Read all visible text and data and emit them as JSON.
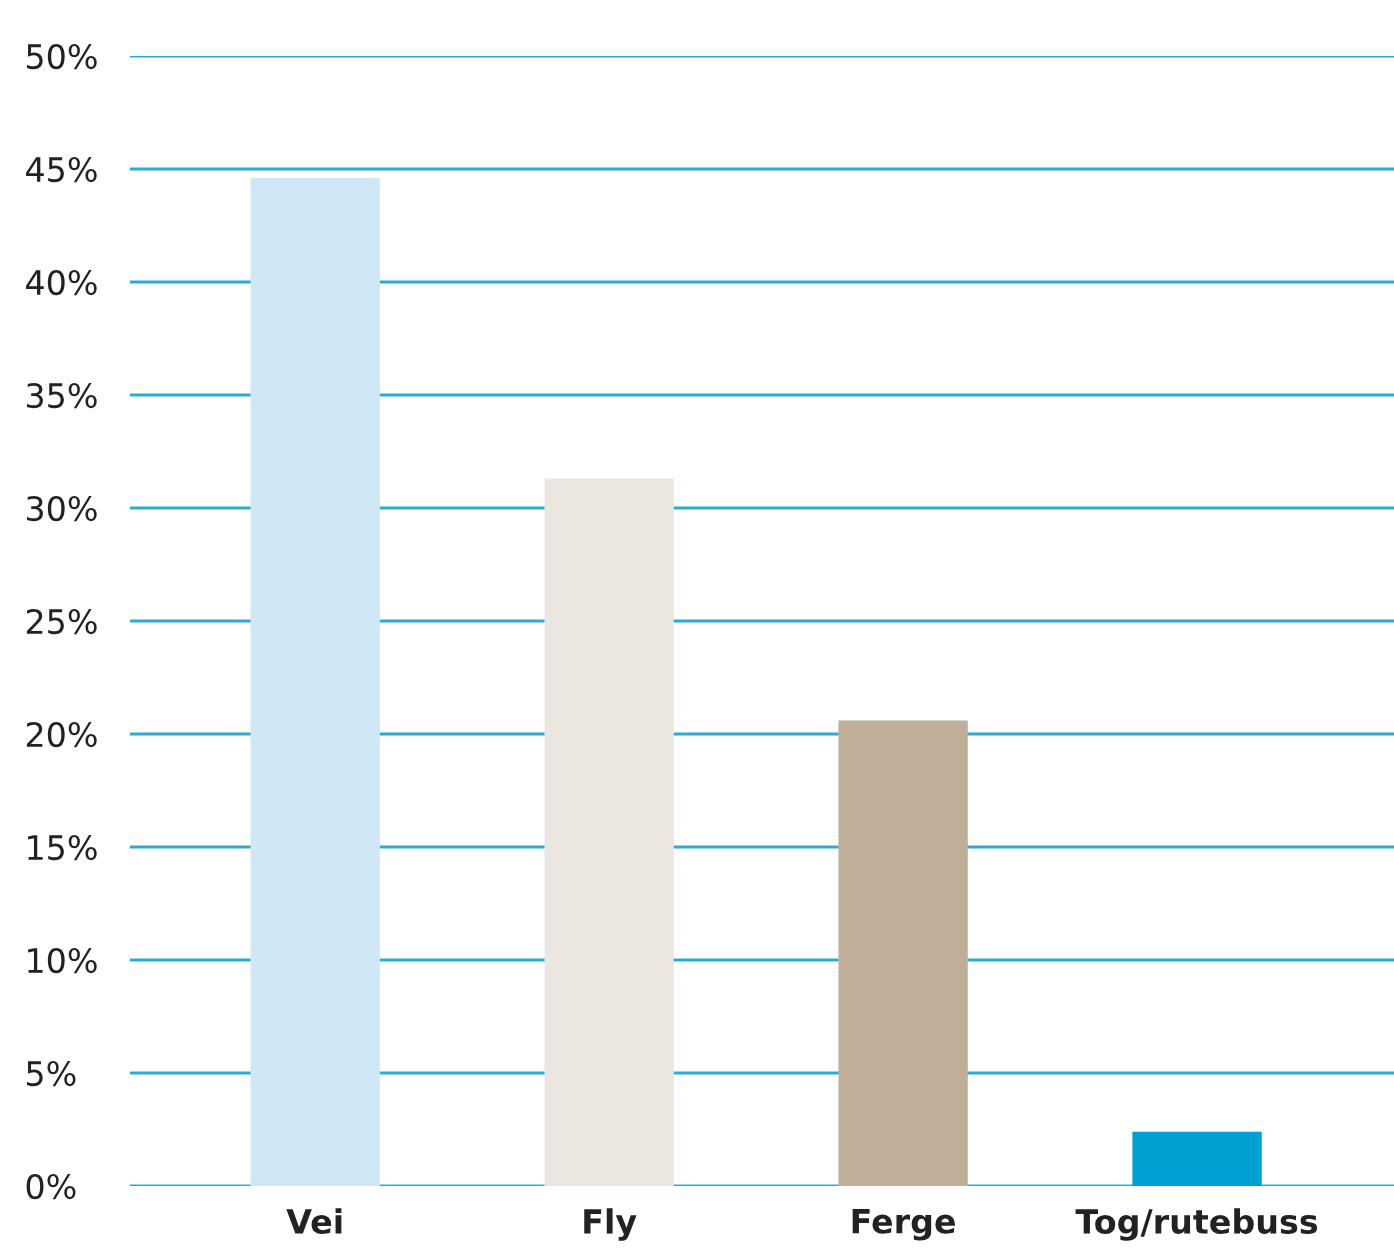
{
  "chart_data": {
    "type": "bar",
    "categories": [
      "Vei",
      "Fly",
      "Ferge",
      "Tog/rutebuss"
    ],
    "values": [
      44.6,
      31.3,
      20.6,
      2.4
    ],
    "colors": [
      "#d0e8f5",
      "#ebe7e0",
      "#bfae98",
      "#00a0d2"
    ],
    "ylim": [
      0,
      50
    ],
    "yticks": [
      {
        "value": 0,
        "label": "0%"
      },
      {
        "value": 5,
        "label": "5%"
      },
      {
        "value": 10,
        "label": "10%"
      },
      {
        "value": 15,
        "label": "15%"
      },
      {
        "value": 20,
        "label": "20%"
      },
      {
        "value": 25,
        "label": "25%"
      },
      {
        "value": 30,
        "label": "30%"
      },
      {
        "value": 35,
        "label": "35%"
      },
      {
        "value": 40,
        "label": "40%"
      },
      {
        "value": 45,
        "label": "45%"
      },
      {
        "value": 50,
        "label": "50%"
      }
    ],
    "grid": "y"
  }
}
